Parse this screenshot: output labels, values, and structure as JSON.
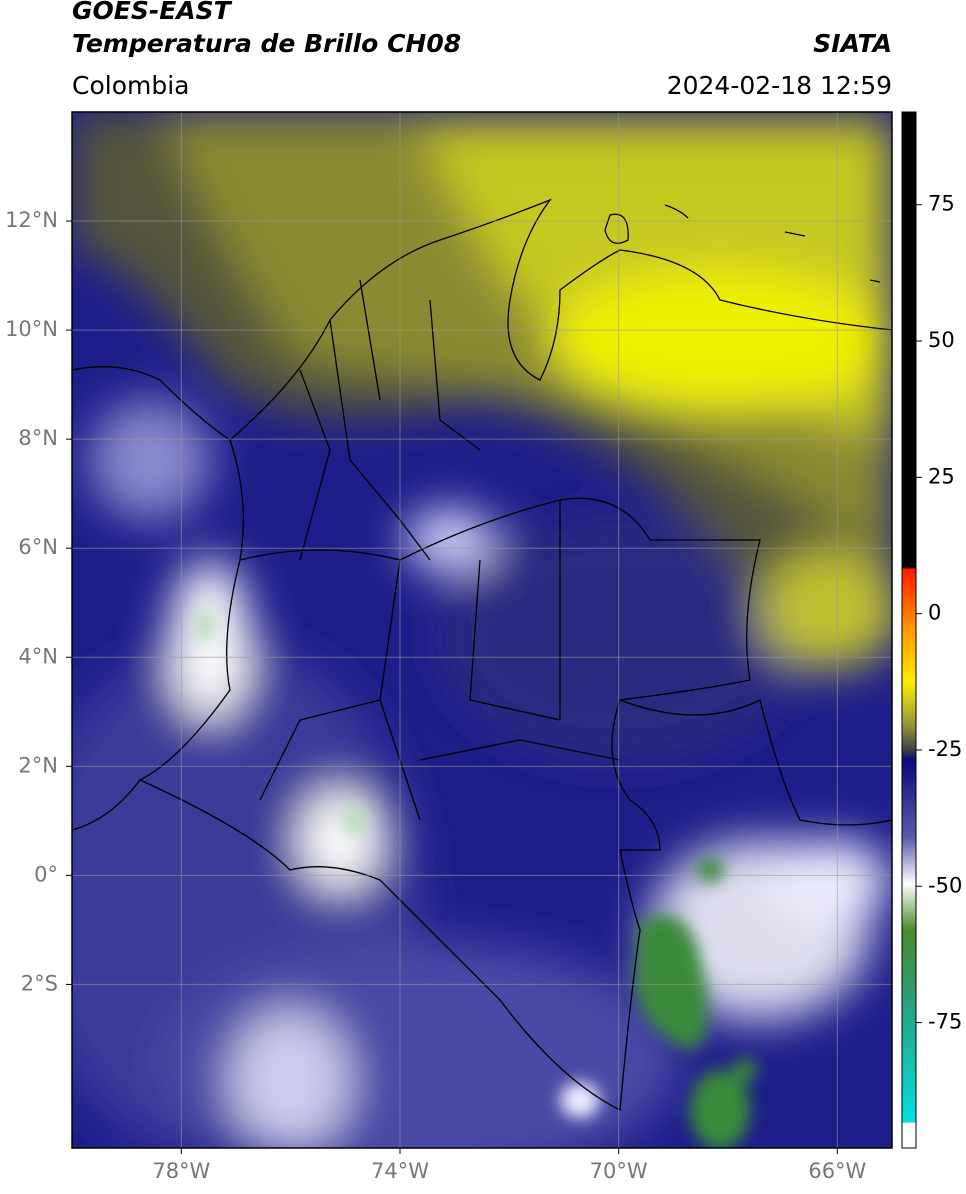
{
  "header": {
    "title": "GOES-EAST",
    "subtitle": "Temperatura de Brillo CH08",
    "region": "Colombia",
    "source": "SIATA",
    "timestamp": "2024-02-18 12:59"
  },
  "map": {
    "xlim": [
      -80,
      -65
    ],
    "ylim": [
      -5,
      14
    ],
    "xticks": [
      {
        "value": -78,
        "label": "78°W"
      },
      {
        "value": -74,
        "label": "74°W"
      },
      {
        "value": -70,
        "label": "70°W"
      },
      {
        "value": -66,
        "label": "66°W"
      }
    ],
    "yticks": [
      {
        "value": 12,
        "label": "12°N"
      },
      {
        "value": 10,
        "label": "10°N"
      },
      {
        "value": 8,
        "label": "8°N"
      },
      {
        "value": 6,
        "label": "6°N"
      },
      {
        "value": 4,
        "label": "4°N"
      },
      {
        "value": 2,
        "label": "2°N"
      },
      {
        "value": 0,
        "label": "0°"
      },
      {
        "value": -2,
        "label": "2°S"
      }
    ],
    "grid": true
  },
  "colorbar": {
    "range": [
      -98,
      92
    ],
    "ticks": [
      75,
      50,
      25,
      0,
      -25,
      -50,
      -75
    ]
  }
}
